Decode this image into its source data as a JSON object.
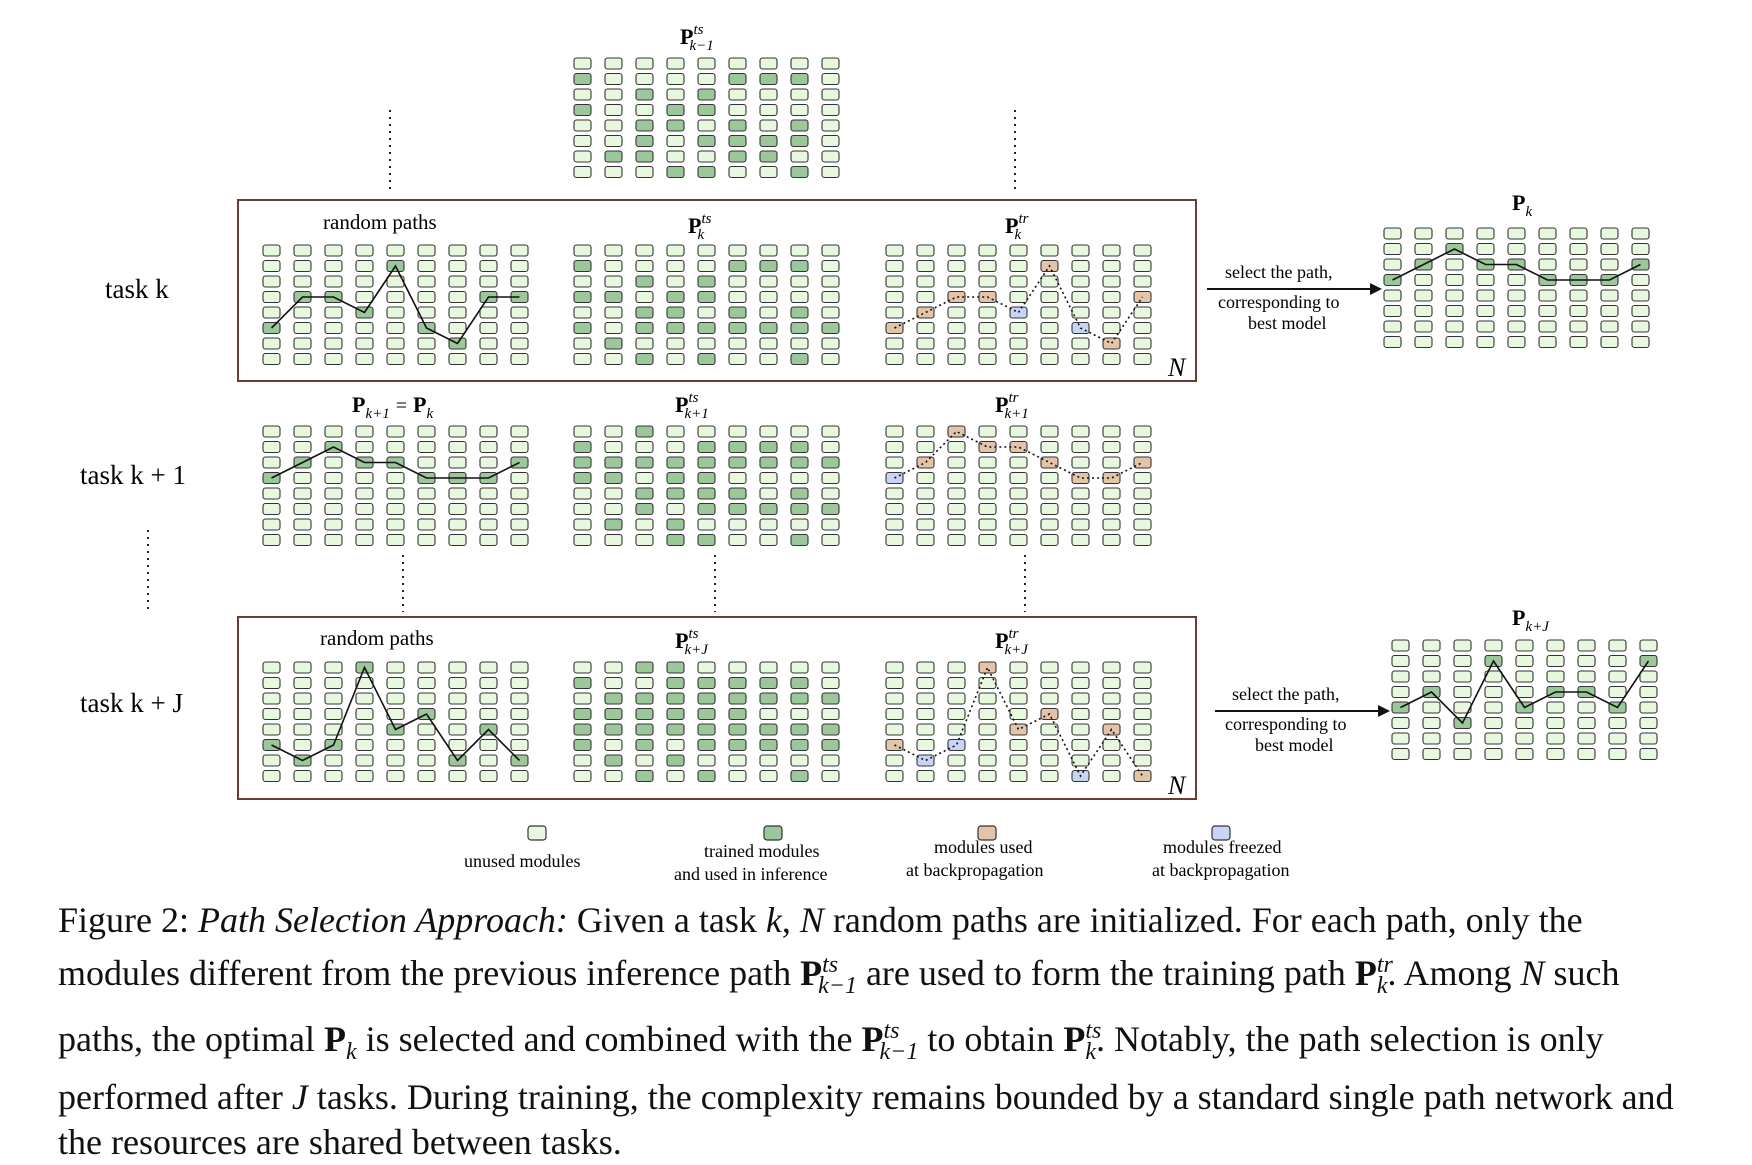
{
  "colors": {
    "unused": "#e8f8de",
    "trained": "#9cc79a",
    "used_bp": "#e3c4a9",
    "freezed": "#c7d4f6",
    "stroke": "#333333",
    "frame": "#6b3c33"
  },
  "rows": {
    "task_k": "task k",
    "task_k1": "task k + 1",
    "task_kJ": "task k + J"
  },
  "panels": {
    "top": {
      "title": "P",
      "sup": "ts",
      "sub": "k−1"
    },
    "random_paths_1": "random paths",
    "random_paths_2": "random paths",
    "pts_k": {
      "title": "P",
      "sup": "ts",
      "sub": "k"
    },
    "ptr_k": {
      "title": "P",
      "sup": "tr",
      "sub": "k"
    },
    "pk1_eq": {
      "left": "P",
      "left_sub": "k+1",
      "eq": "=",
      "right": "P",
      "right_sub": "k"
    },
    "pts_k1": {
      "title": "P",
      "sup": "ts",
      "sub": "k+1"
    },
    "ptr_k1": {
      "title": "P",
      "sup": "tr",
      "sub": "k+1"
    },
    "pts_kJ": {
      "title": "P",
      "sup": "ts",
      "sub": "k+J"
    },
    "ptr_kJ": {
      "title": "P",
      "sup": "tr",
      "sub": "k+J"
    },
    "pk": {
      "title": "P",
      "sub": "k"
    },
    "pkJ": {
      "title": "P",
      "sub": "k+J"
    },
    "n_label": "N"
  },
  "arrow_text": {
    "line1": "select the path,",
    "line2": "corresponding to",
    "line3": "best model"
  },
  "legend": {
    "unused": "unused modules",
    "trained_1": "trained modules",
    "trained_2": "and used in inference",
    "used_1": "modules used",
    "used_2": "at backpropagation",
    "freezed_1": "modules freezed",
    "freezed_2": "at backpropagation"
  },
  "caption": {
    "fig": "Figure 2:",
    "title": "Path Selection Approach:",
    "s1": "Given a task",
    "k": "k",
    "c1": ",",
    "N": "N",
    "s2": "random paths are initialized. For each path,",
    "s3": "only the modules different from the previous inference path",
    "s4": "are used to form the training path",
    "s5": ". Among",
    "s6": "such paths, the optimal",
    "s7": "is selected and combined with the",
    "s8": "to obtain",
    "s9": ".",
    "s10": "Notably, the path selection is only performed after",
    "J": "J",
    "s11": "tasks. During training, the complexity remains",
    "s12": "bounded by a standard single path network and the resources are shared between tasks.",
    "P": "P",
    "ts": "ts",
    "tr": "tr",
    "km1": "k−1"
  }
}
